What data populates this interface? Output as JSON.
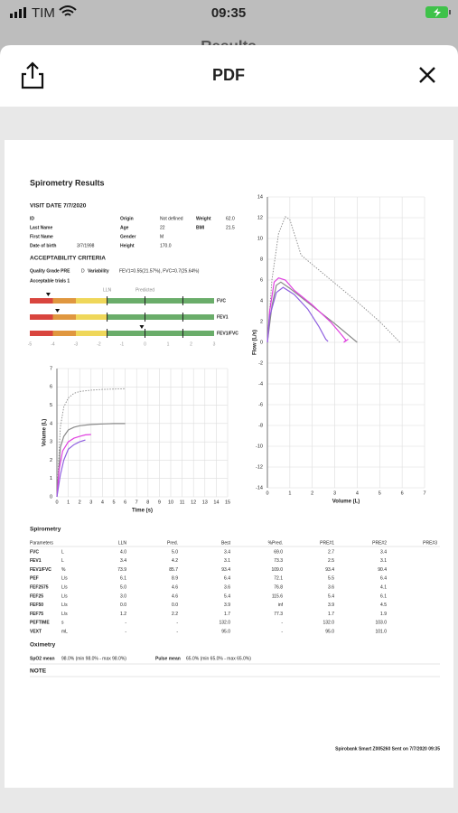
{
  "status": {
    "carrier": "TIM",
    "time": "09:35"
  },
  "nav": {
    "behind_title": "Results",
    "title": "PDF"
  },
  "report": {
    "title": "Spirometry Results",
    "visit": "VISIT DATE 7/7/2020",
    "patient": [
      [
        {
          "label": "ID"
        },
        {
          "label": "Origin",
          "value": "Not defined"
        },
        {
          "label": "Weight",
          "value": "62.0"
        }
      ],
      [
        {
          "label": "Last Name"
        },
        {
          "label": "Age",
          "value": "22"
        },
        {
          "label": "BMI",
          "value": "21.5"
        }
      ],
      [
        {
          "label": "First Name"
        },
        {
          "label": "Gender",
          "value": "M"
        }
      ],
      [
        {
          "label": "Date of birth",
          "value": "3/7/1998"
        },
        {
          "label": "Height",
          "value": "170.0"
        }
      ]
    ],
    "acceptability": {
      "heading": "ACCEPTABILITY CRITERIA",
      "grade_label": "Quality Grade PRE",
      "grade": "D",
      "variability_label": "Variability",
      "variability": "FEV1=0.55(21.57%), FVC=0.7(25.64%)",
      "trials": "Acceptable trials 1"
    },
    "zscore": {
      "lln_label": "LLN",
      "predicted_label": "Predicted",
      "lln": -1.645,
      "predicted": 0,
      "uln": 1.645,
      "zlim": [
        -5,
        3
      ],
      "zticks": [
        -5,
        -4,
        -3,
        -2,
        -1,
        0,
        1,
        2,
        3
      ],
      "bands": [
        {
          "from": -5,
          "to": -4,
          "color": "#d9453e"
        },
        {
          "from": -4,
          "to": -3,
          "color": "#e0973f"
        },
        {
          "from": -3,
          "to": -1.645,
          "color": "#efd75a"
        },
        {
          "from": -1.645,
          "to": 3,
          "color": "#6aad6a"
        }
      ],
      "rows": [
        {
          "label": "FVC",
          "value": -4.2
        },
        {
          "label": "FEV1",
          "value": -3.8
        },
        {
          "label": "FEV1/FVC",
          "value": -0.14
        }
      ]
    },
    "charts": [
      {
        "type": "line",
        "xlabel": "Time (s)",
        "ylabel": "Volume (L)",
        "xlim": [
          0,
          15
        ],
        "ylim": [
          0,
          7
        ],
        "xticks": [
          0,
          1,
          2,
          3,
          4,
          5,
          6,
          7,
          8,
          9,
          10,
          11,
          12,
          13,
          14,
          15
        ],
        "yticks": [
          0,
          1,
          2,
          3,
          4,
          5,
          6,
          7
        ],
        "grid": true,
        "series": [
          {
            "color": "#888888",
            "dashed": true,
            "x": [
              0,
              0.3,
              0.6,
              1,
              1.5,
              2,
              3,
              4,
              5,
              6
            ],
            "y": [
              0,
              3.8,
              4.9,
              5.4,
              5.65,
              5.75,
              5.82,
              5.86,
              5.88,
              5.9
            ]
          },
          {
            "color": "#888888",
            "dashed": false,
            "x": [
              0,
              0.3,
              0.6,
              1,
              1.5,
              2,
              3,
              4,
              5,
              6
            ],
            "y": [
              0,
              2.7,
              3.3,
              3.65,
              3.8,
              3.88,
              3.95,
              3.98,
              4,
              4
            ]
          },
          {
            "color": "#e040e0",
            "dashed": false,
            "x": [
              0,
              0.2,
              0.5,
              1,
              1.5,
              2,
              2.5,
              3
            ],
            "y": [
              0,
              1.5,
              2.5,
              3.0,
              3.2,
              3.3,
              3.38,
              3.4
            ]
          },
          {
            "color": "#9060e0",
            "dashed": false,
            "x": [
              0,
              0.3,
              0.6,
              1,
              1.5,
              2,
              2.5
            ],
            "y": [
              0,
              1.2,
              2.0,
              2.6,
              2.85,
              3.0,
              3.1
            ]
          }
        ]
      },
      {
        "type": "line",
        "xlabel": "Volume (L)",
        "ylabel": "Flow (L/s)",
        "xlim": [
          0,
          7
        ],
        "ylim": [
          -14,
          14
        ],
        "xticks": [
          0,
          1,
          2,
          3,
          4,
          5,
          6,
          7
        ],
        "yticks": [
          -14,
          -12,
          -10,
          -8,
          -6,
          -4,
          -2,
          0,
          2,
          4,
          6,
          8,
          10,
          12,
          14
        ],
        "grid": true,
        "series": [
          {
            "color": "#888888",
            "dashed": true,
            "x": [
              0,
              0.2,
              0.5,
              0.8,
              1.0,
              1.5,
              2,
              3,
              4,
              5,
              5.9
            ],
            "y": [
              0,
              6,
              10.5,
              12.1,
              11.8,
              8.4,
              7.5,
              5.7,
              3.9,
              2,
              0
            ]
          },
          {
            "color": "#888888",
            "dashed": false,
            "x": [
              0,
              0.2,
              0.4,
              0.6,
              1,
              2,
              3,
              4
            ],
            "y": [
              0,
              3.5,
              5.5,
              5.8,
              5.2,
              3.5,
              1.8,
              0
            ]
          },
          {
            "color": "#e040e0",
            "dashed": false,
            "x": [
              0,
              0.1,
              0.3,
              0.5,
              0.8,
              1.2,
              2,
              2.8,
              3.2,
              3.5,
              3.4,
              3.6
            ],
            "y": [
              0,
              3,
              5.8,
              6.2,
              6.0,
              5.0,
              3.6,
              2.0,
              1,
              0.2,
              0,
              0.3
            ]
          },
          {
            "color": "#9060e0",
            "dashed": false,
            "x": [
              0,
              0.1,
              0.4,
              0.7,
              1.2,
              1.8,
              2.3,
              2.6,
              2.7
            ],
            "y": [
              0,
              2.5,
              4.8,
              5.3,
              4.6,
              3.2,
              1.5,
              0.3,
              0.1
            ]
          }
        ]
      }
    ],
    "spirometry": {
      "heading": "Spirometry",
      "columns": [
        "Parameters",
        "LLN",
        "Pred.",
        "Best",
        "%Pred.",
        "PRE#1",
        "PRE#2",
        "PRE#3"
      ],
      "rows": [
        [
          "FVC",
          "L",
          "4.0",
          "5.0",
          "3.4",
          "69.0",
          "2.7",
          "3.4"
        ],
        [
          "FEV1",
          "L",
          "3.4",
          "4.2",
          "3.1",
          "73.3",
          "2.5",
          "3.1"
        ],
        [
          "FEV1/FVC",
          "%",
          "73.9",
          "85.7",
          "93.4",
          "109.0",
          "93.4",
          "90.4"
        ],
        [
          "PEF",
          "L/s",
          "6.1",
          "8.9",
          "6.4",
          "72.1",
          "5.5",
          "6.4"
        ],
        [
          "FEF2575",
          "L/s",
          "5.0",
          "4.6",
          "3.6",
          "76.8",
          "3.6",
          "4.1"
        ],
        [
          "FEF25",
          "L/s",
          "3.0",
          "4.6",
          "5.4",
          "115.6",
          "5.4",
          "6.1"
        ],
        [
          "FEF50",
          "L/s",
          "0.0",
          "0.0",
          "3.9",
          "inf",
          "3.9",
          "4.5"
        ],
        [
          "FEF75",
          "L/s",
          "1.2",
          "2.2",
          "1.7",
          "77.3",
          "1.7",
          "1.9"
        ],
        [
          "PEFTIME",
          "s",
          "-",
          "-",
          "132.0",
          "-",
          "132.0",
          "103.0"
        ],
        [
          "VEXT",
          "mL",
          "-",
          "-",
          "95.0",
          "-",
          "95.0",
          "101.0"
        ]
      ]
    },
    "oximetry": {
      "heading": "Oximetry",
      "spo2_label": "SpO2 mean",
      "spo2": "98.0% (min 98.0% - max 98.0%)",
      "pulse_label": "Pulse mean",
      "pulse": "65.0% (min 65.0% - max 65.0%)"
    },
    "note": "NOTE",
    "footer": "Spirobank Smart Z005260 Sent on 7/7/2020 09:35"
  }
}
